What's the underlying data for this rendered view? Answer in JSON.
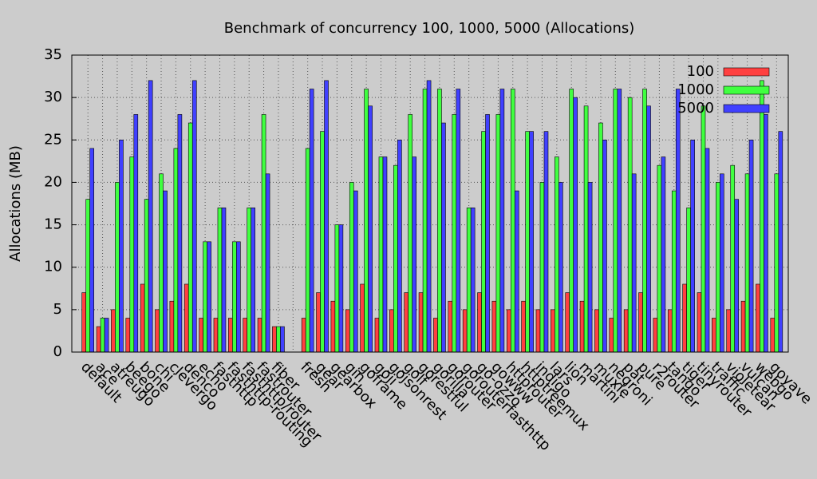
{
  "chart_data": {
    "type": "bar",
    "title": "Benchmark of concurrency 100, 1000, 5000 (Allocations)",
    "y_label": "Allocations (MB)",
    "categories": [
      "default",
      "ace",
      "atreugo",
      "beego",
      "bone",
      "chi",
      "clevergo",
      "denco",
      "echo",
      "fasthttp",
      "fasthttp-routing",
      "fasthttp/router",
      "fastrouter",
      "fiber",
      null,
      "fresh",
      "gear",
      "gearbox",
      "gin",
      "goframe",
      "goji",
      "gojsonrest",
      "golf",
      "gorestful",
      "gorilla",
      "gorouter",
      "gorouterfasthttp",
      "go-ozzo",
      "gowww",
      "httprouter",
      "httptreemux",
      "indigo",
      "lars",
      "lion",
      "martini",
      "muxie",
      "negroni",
      "pat",
      "pure",
      "r2router",
      "tango",
      "tiger",
      "tinyrouter",
      "traffic",
      "violetear",
      "vulcan",
      "webgo",
      "goyave"
    ],
    "series": [
      {
        "name": "100",
        "color": "#ff4040",
        "values": [
          7,
          3,
          5,
          4,
          8,
          5,
          6,
          8,
          4,
          4,
          4,
          4,
          4,
          3,
          null,
          4,
          7,
          6,
          5,
          8,
          4,
          5,
          7,
          7,
          4,
          6,
          5,
          7,
          6,
          5,
          6,
          5,
          5,
          7,
          6,
          5,
          4,
          5,
          7,
          4,
          5,
          8,
          7,
          4,
          5,
          6,
          8,
          4
        ]
      },
      {
        "name": "1000",
        "color": "#40ff40",
        "values": [
          18,
          4,
          20,
          23,
          18,
          21,
          24,
          27,
          13,
          17,
          13,
          17,
          28,
          3,
          null,
          24,
          26,
          15,
          20,
          31,
          23,
          22,
          28,
          31,
          31,
          28,
          17,
          26,
          28,
          31,
          26,
          20,
          23,
          31,
          29,
          27,
          31,
          30,
          31,
          22,
          19,
          17,
          29,
          20,
          22,
          21,
          32,
          21
        ]
      },
      {
        "name": "5000",
        "color": "#4040ff",
        "values": [
          24,
          4,
          25,
          28,
          32,
          19,
          28,
          32,
          13,
          17,
          13,
          17,
          21,
          3,
          null,
          31,
          32,
          15,
          19,
          29,
          23,
          25,
          23,
          32,
          27,
          31,
          17,
          28,
          31,
          19,
          26,
          26,
          20,
          30,
          20,
          25,
          31,
          21,
          29,
          23,
          31,
          25,
          24,
          21,
          18,
          25,
          28,
          26
        ]
      }
    ],
    "ylim": [
      0,
      35
    ],
    "yticks": [
      0,
      5,
      10,
      15,
      20,
      25,
      30,
      35
    ],
    "grid": true,
    "legend": "top-right"
  }
}
